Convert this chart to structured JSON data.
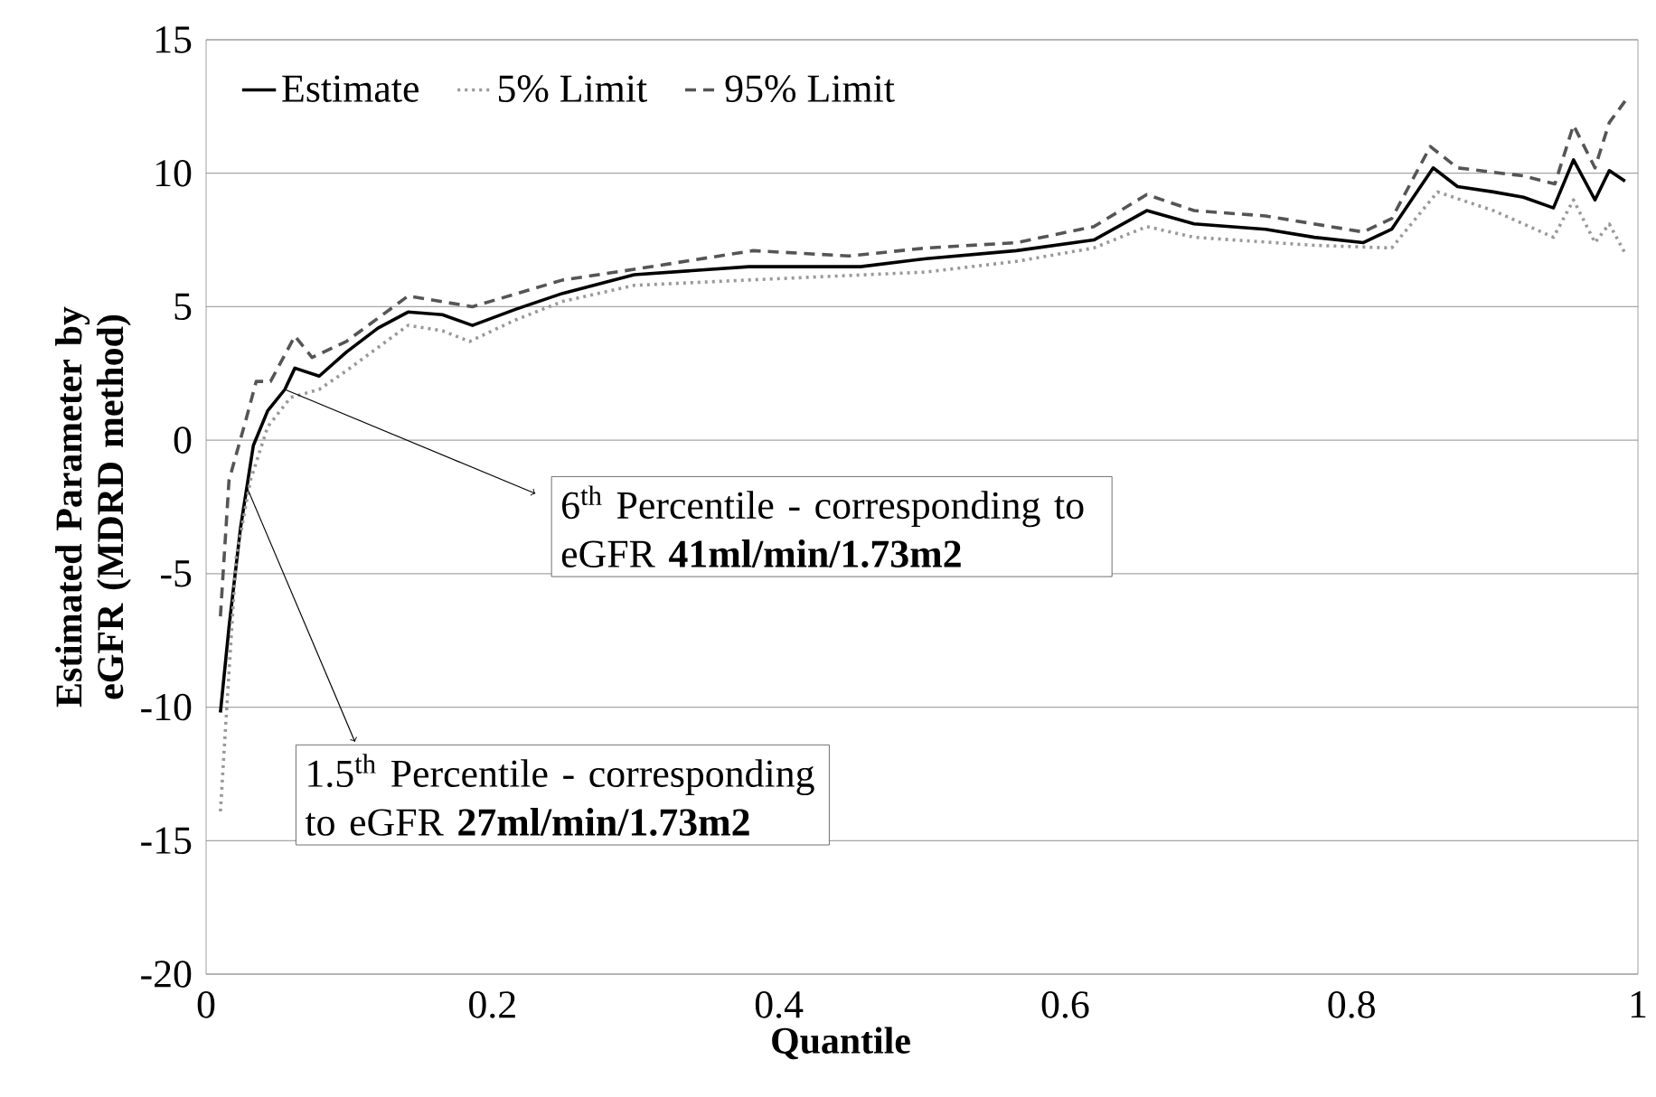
{
  "chart_data": {
    "type": "line",
    "xlabel": "Quantile",
    "ylabel": "Estimated Parameter by eGFR (MDRD method)",
    "xlim": [
      0,
      1
    ],
    "ylim": [
      -20,
      15
    ],
    "xticks": [
      0,
      0.2,
      0.4,
      0.6,
      0.8,
      1
    ],
    "yticks": [
      -20,
      -15,
      -10,
      -5,
      0,
      5,
      10,
      15
    ],
    "grid": "y",
    "legend": "top left",
    "series": [
      {
        "name": "Estimate",
        "color": "#000000",
        "line_style": "solid",
        "x": [
          0.01,
          0.016,
          0.024,
          0.033,
          0.043,
          0.055,
          0.062,
          0.079,
          0.098,
          0.12,
          0.141,
          0.165,
          0.186,
          0.216,
          0.249,
          0.299,
          0.379,
          0.42,
          0.457,
          0.503,
          0.566,
          0.62,
          0.657,
          0.69,
          0.74,
          0.774,
          0.808,
          0.828,
          0.857,
          0.874,
          0.899,
          0.92,
          0.941,
          0.955,
          0.97,
          0.98,
          0.991
        ],
        "values": [
          -10.2,
          -7.0,
          -3.3,
          -0.2,
          1.1,
          1.9,
          2.7,
          2.4,
          3.3,
          4.2,
          4.8,
          4.7,
          4.3,
          4.9,
          5.5,
          6.2,
          6.5,
          6.5,
          6.5,
          6.8,
          7.1,
          7.5,
          8.6,
          8.1,
          7.9,
          7.6,
          7.4,
          7.9,
          10.2,
          9.5,
          9.3,
          9.1,
          8.7,
          10.5,
          9.0,
          10.1,
          9.7
        ]
      },
      {
        "name": "5% Limit",
        "color": "#999999",
        "line_style": "dotted",
        "x": [
          0.01,
          0.014,
          0.021,
          0.031,
          0.043,
          0.059,
          0.079,
          0.098,
          0.141,
          0.165,
          0.184,
          0.216,
          0.249,
          0.299,
          0.379,
          0.503,
          0.566,
          0.62,
          0.657,
          0.69,
          0.774,
          0.828,
          0.86,
          0.899,
          0.941,
          0.955,
          0.97,
          0.98,
          0.991
        ],
        "values": [
          -13.9,
          -10.4,
          -4.4,
          -1.5,
          0.5,
          1.6,
          1.9,
          2.6,
          4.3,
          4.1,
          3.7,
          4.5,
          5.2,
          5.8,
          6.0,
          6.3,
          6.7,
          7.2,
          8.0,
          7.6,
          7.3,
          7.2,
          9.3,
          8.6,
          7.6,
          9.0,
          7.4,
          8.1,
          7.0
        ]
      },
      {
        "name": "95% Limit",
        "color": "#555555",
        "line_style": "dashed",
        "x": [
          0.01,
          0.016,
          0.028,
          0.035,
          0.045,
          0.062,
          0.074,
          0.098,
          0.141,
          0.186,
          0.249,
          0.299,
          0.382,
          0.449,
          0.503,
          0.566,
          0.62,
          0.657,
          0.69,
          0.74,
          0.808,
          0.828,
          0.855,
          0.874,
          0.92,
          0.942,
          0.955,
          0.97,
          0.98,
          0.991
        ],
        "values": [
          -6.6,
          -1.5,
          0.8,
          2.2,
          2.2,
          3.9,
          3.1,
          3.7,
          5.4,
          5.0,
          6.0,
          6.4,
          7.1,
          6.9,
          7.2,
          7.4,
          8.0,
          9.2,
          8.6,
          8.4,
          7.8,
          8.3,
          11.0,
          10.2,
          9.9,
          9.6,
          11.8,
          10.2,
          11.9,
          12.7
        ]
      }
    ],
    "annotations": [
      {
        "text": "6$^{th}$ Percentile - corresponding to eGFR **41ml/min/1.73m2**",
        "x": 0.055,
        "y": 1.9
      },
      {
        "text": "1.5$^{th}$ Percentile - corresponding to eGFR **27ml/min/1.73m2**",
        "x": 0.028,
        "y": -1.7
      }
    ]
  }
}
